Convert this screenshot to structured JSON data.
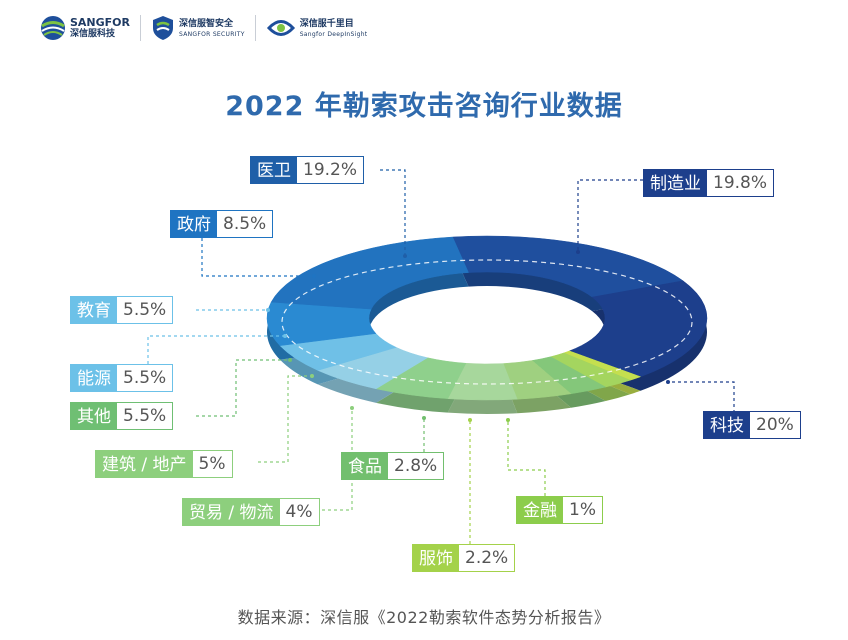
{
  "header": {
    "logo1": {
      "line1": "SANGFOR",
      "line2": "深信服科技"
    },
    "logo2": {
      "line1": "深信服智安全",
      "line2": "SANGFOR SECURITY"
    },
    "logo3": {
      "line1": "深信服千里目",
      "line2": "Sangfor DeepInSight"
    }
  },
  "colors": {
    "title": "#2f6aad",
    "navy": "#1d3f8c",
    "blue": "#2078c6",
    "light_blue": "#63b8e4",
    "green": "#7ac27e",
    "yellow_green": "#a8d44a"
  },
  "chart_data": {
    "type": "pie",
    "title": "2022 年勒索攻击咨询行业数据",
    "source": "数据来源：深信服《2022勒索软件态势分析报告》",
    "slices": [
      {
        "name": "制造业",
        "value": 19.8,
        "label": "19.8%",
        "color": "#1f4f9e"
      },
      {
        "name": "科技",
        "value": 20,
        "label": "20%",
        "color": "#1d3f8c"
      },
      {
        "name": "金融",
        "value": 1,
        "label": "1%",
        "color": "#c4df4f"
      },
      {
        "name": "服饰",
        "value": 2.2,
        "label": "2.2%",
        "color": "#a4d55f"
      },
      {
        "name": "食品",
        "value": 2.8,
        "label": "2.8%",
        "color": "#84c77a"
      },
      {
        "name": "贸易 / 物流",
        "value": 4,
        "label": "4%",
        "color": "#9fd080"
      },
      {
        "name": "建筑 / 地产",
        "value": 5,
        "label": "5%",
        "color": "#a7d79c"
      },
      {
        "name": "其他",
        "value": 5.5,
        "label": "5.5%",
        "color": "#8fd08c"
      },
      {
        "name": "能源",
        "value": 5.5,
        "label": "5.5%",
        "color": "#95d0e6"
      },
      {
        "name": "教育",
        "value": 5.5,
        "label": "5.5%",
        "color": "#6fc0e7"
      },
      {
        "name": "政府",
        "value": 8.5,
        "label": "8.5%",
        "color": "#2a8ad2"
      },
      {
        "name": "医卫",
        "value": 19.2,
        "label": "19.2%",
        "color": "#2273bf"
      }
    ]
  }
}
